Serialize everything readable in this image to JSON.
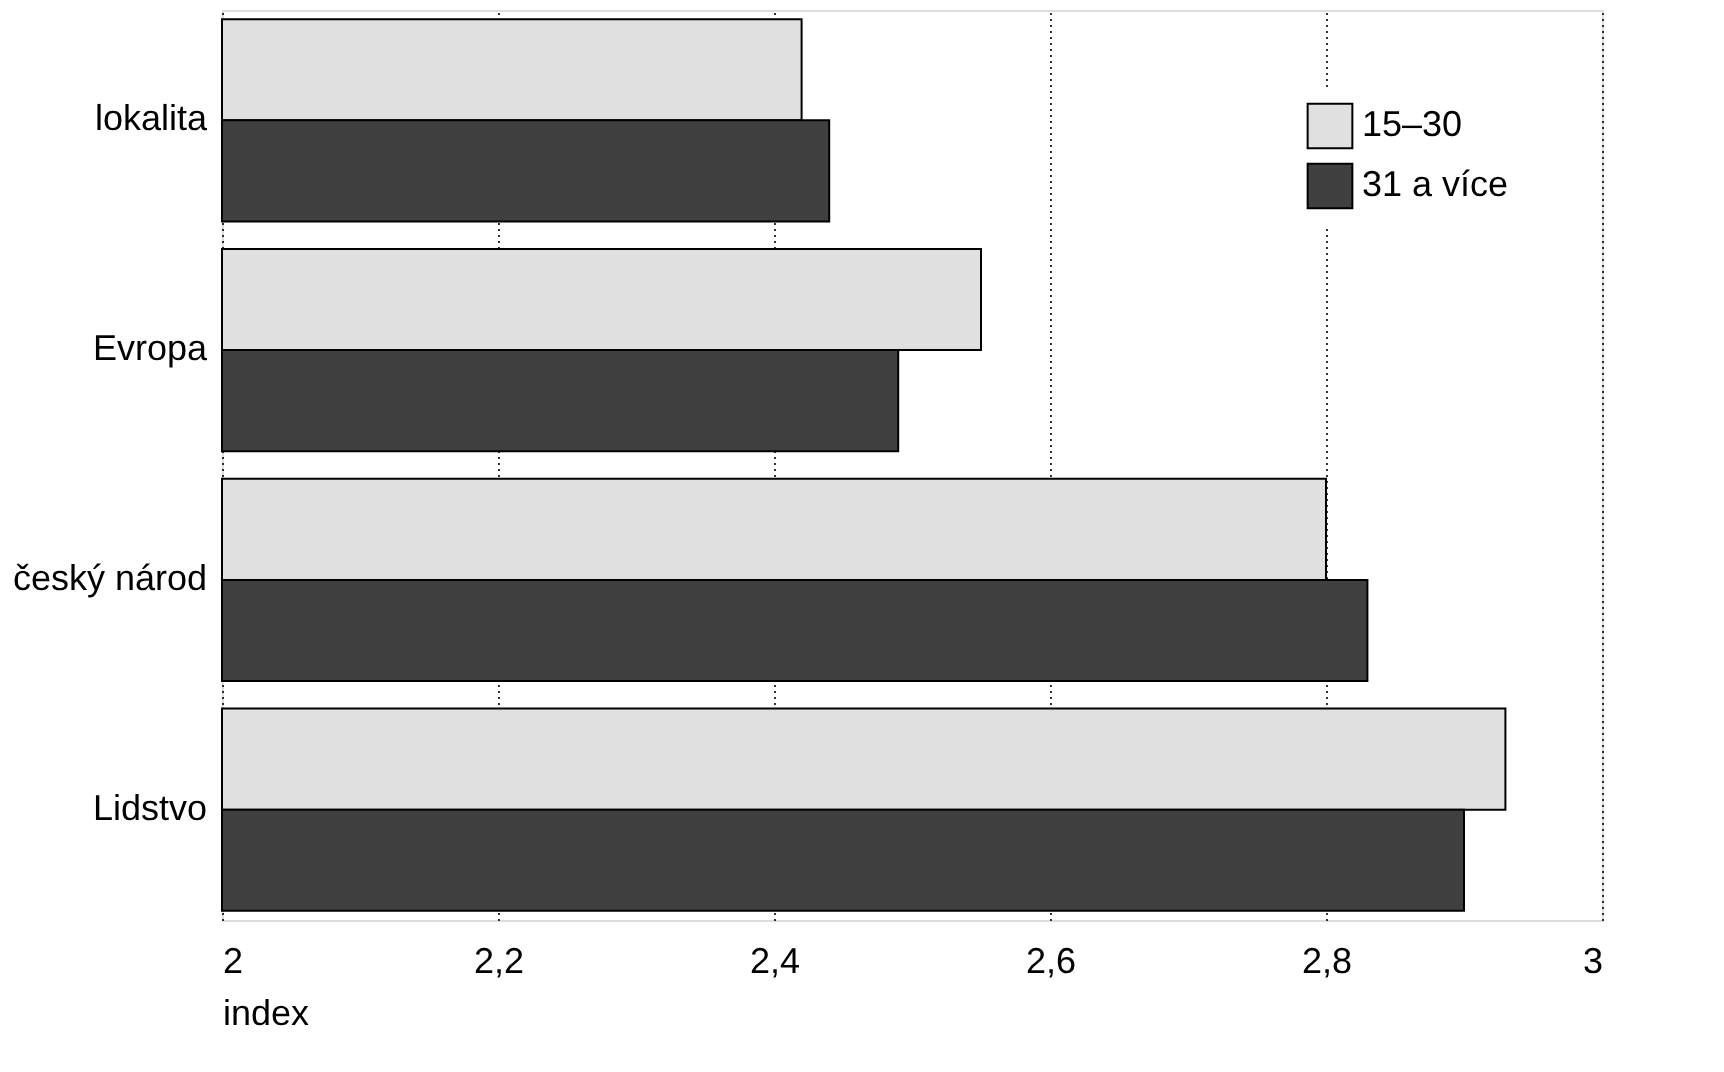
{
  "chart_data": {
    "type": "bar",
    "orientation": "horizontal",
    "xlabel": "index",
    "categories": [
      "lokalita",
      "Evropa",
      "český národ",
      "Lidstvo"
    ],
    "series": [
      {
        "name": "15–30",
        "color": "#e0e0e0",
        "values": [
          2.42,
          2.55,
          2.8,
          2.93
        ]
      },
      {
        "name": "31 a více",
        "color": "#404040",
        "values": [
          2.44,
          2.49,
          2.83,
          2.9
        ]
      }
    ],
    "xlim": [
      2,
      3
    ],
    "xticks": [
      2,
      {
        "value": 2.2,
        "label": "2,2"
      },
      {
        "value": 2.4,
        "label": "2,4"
      },
      {
        "value": 2.6,
        "label": "2,6"
      },
      {
        "value": 2.8,
        "label": "2,8"
      },
      3
    ],
    "grid": "x",
    "line_style": "dotted",
    "legend": "top right"
  }
}
